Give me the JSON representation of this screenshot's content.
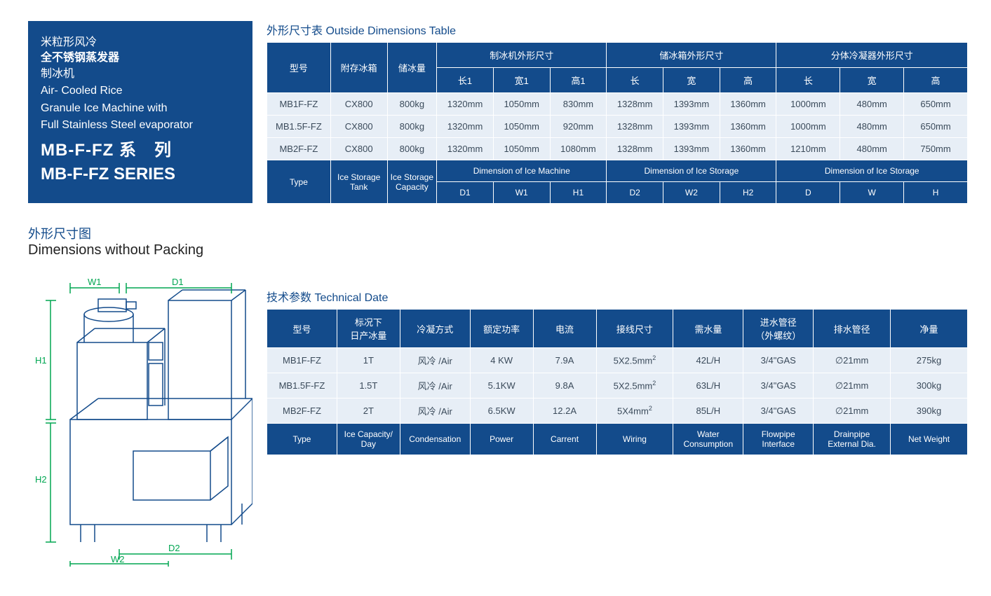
{
  "colors": {
    "brand": "#134b8b",
    "row_bg": "#e7eef6",
    "row_text": "#3a4a5a",
    "border": "#ffffff",
    "diagram_stroke": "#134b8b"
  },
  "title_box": {
    "cn_line1": "米粒形风冷",
    "cn_line2": "全不锈钢蒸发器",
    "cn_line3": "制冰机",
    "en_line1": "Air- Cooled Rice",
    "en_line2": "Granule Ice Machine with",
    "en_line3": "Full Stainless Steel evaporator",
    "series_cn": "MB-F-FZ 系　列",
    "series_en": "MB-F-FZ SERIES"
  },
  "dim_title": {
    "cn": "外形尺寸图",
    "en": "Dimensions without Packing"
  },
  "diagram_labels": {
    "W1": "W1",
    "D1": "D1",
    "H1": "H1",
    "H2": "H2",
    "D2": "D2",
    "W2": "W2"
  },
  "table1": {
    "title": "外形尺寸表 Outside Dimensions Table",
    "head_cn": {
      "type": "型号",
      "tank": "附存冰箱",
      "capacity": "储冰量",
      "group_machine": "制冰机外形尺寸",
      "group_storage": "储冰箱外形尺寸",
      "group_condenser": "分体冷凝器外形尺寸",
      "L1": "长1",
      "W1": "宽1",
      "H1": "高1",
      "L": "长",
      "W": "宽",
      "H": "高",
      "Lc": "长",
      "Wc": "宽",
      "Hc": "高"
    },
    "head_en": {
      "type": "Type",
      "tank": "Ice Storage Tank",
      "capacity": "Ice Storage Capacity",
      "group_machine": "Dimension of Ice Machine",
      "group_storage": "Dimension of Ice Storage",
      "group_condenser": "Dimension of Ice Storage",
      "D1": "D1",
      "W1": "W1",
      "H1": "H1",
      "D2": "D2",
      "W2": "W2",
      "H2": "H2",
      "D": "D",
      "W": "W",
      "H": "H"
    },
    "rows": [
      {
        "type": "MB1F-FZ",
        "tank": "CX800",
        "cap": "800kg",
        "m": [
          "1320mm",
          "1050mm",
          "830mm"
        ],
        "s": [
          "1328mm",
          "1393mm",
          "1360mm"
        ],
        "c": [
          "1000mm",
          "480mm",
          "650mm"
        ]
      },
      {
        "type": "MB1.5F-FZ",
        "tank": "CX800",
        "cap": "800kg",
        "m": [
          "1320mm",
          "1050mm",
          "920mm"
        ],
        "s": [
          "1328mm",
          "1393mm",
          "1360mm"
        ],
        "c": [
          "1000mm",
          "480mm",
          "650mm"
        ]
      },
      {
        "type": "MB2F-FZ",
        "tank": "CX800",
        "cap": "800kg",
        "m": [
          "1320mm",
          "1050mm",
          "1080mm"
        ],
        "s": [
          "1328mm",
          "1393mm",
          "1360mm"
        ],
        "c": [
          "1210mm",
          "480mm",
          "750mm"
        ]
      }
    ]
  },
  "table2": {
    "title": "技术参数 Technical Date",
    "head_cn": {
      "type": "型号",
      "capacity": "标况下\n日产冰量",
      "cond": "冷凝方式",
      "power": "额定功率",
      "current": "电流",
      "wiring": "接线尺寸",
      "water": "需水量",
      "flow": "进水管径\n（外螺纹）",
      "drain": "排水管径",
      "weight": "净量"
    },
    "head_en": {
      "type": "Type",
      "capacity": "Ice Capacity/\nDay",
      "cond": "Condensation",
      "power": "Power",
      "current": "Carrent",
      "wiring": "Wiring",
      "water": "Water\nConsumption",
      "flow": "Flowpipe\nInterface",
      "drain": "Drainpipe\nExternal Dia.",
      "weight": "Net Weight"
    },
    "rows": [
      {
        "type": "MB1F-FZ",
        "cap": "1T",
        "cond": "风冷 /Air",
        "power": "4 KW",
        "cur": "7.9A",
        "wire": "5X2.5mm²",
        "water": "42L/H",
        "flow": "3/4\"GAS",
        "drain": "∅21mm",
        "wt": "275kg"
      },
      {
        "type": "MB1.5F-FZ",
        "cap": "1.5T",
        "cond": "风冷 /Air",
        "power": "5.1KW",
        "cur": "9.8A",
        "wire": "5X2.5mm²",
        "water": "63L/H",
        "flow": "3/4\"GAS",
        "drain": "∅21mm",
        "wt": "300kg"
      },
      {
        "type": "MB2F-FZ",
        "cap": "2T",
        "cond": "风冷 /Air",
        "power": "6.5KW",
        "cur": "12.2A",
        "wire": "5X4mm²",
        "water": "85L/H",
        "flow": "3/4\"GAS",
        "drain": "∅21mm",
        "wt": "390kg"
      }
    ]
  }
}
